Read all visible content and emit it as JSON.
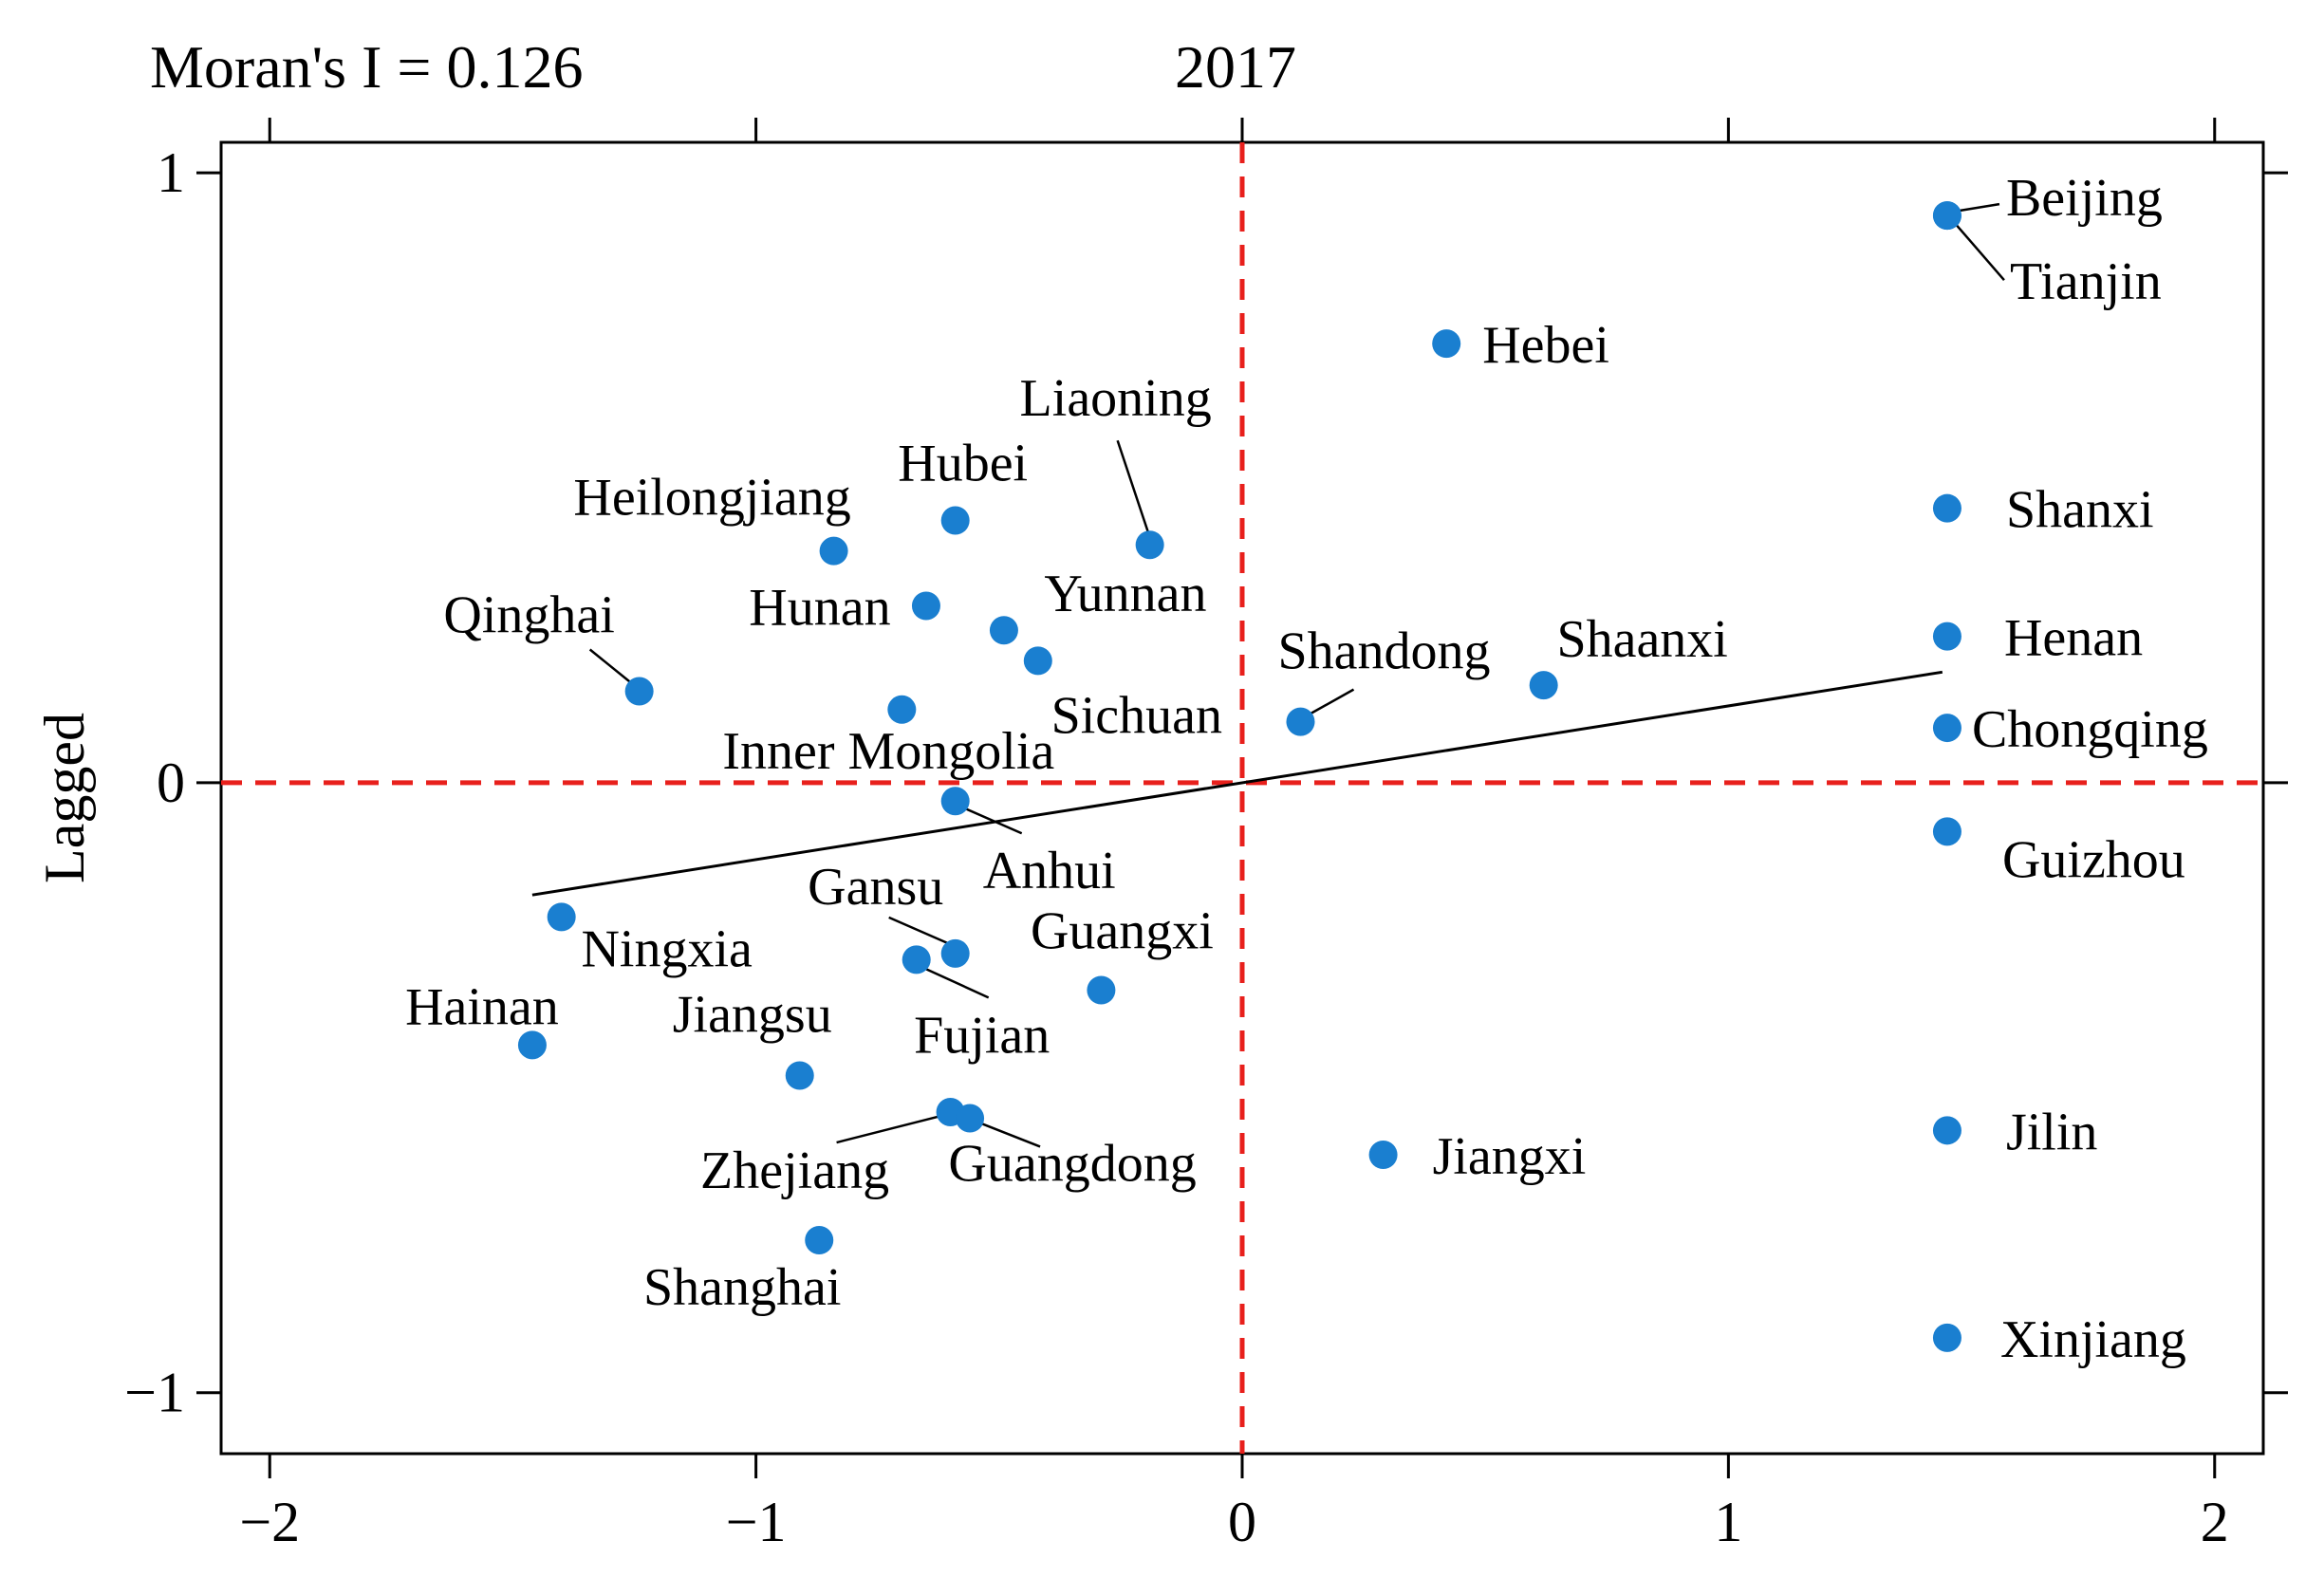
{
  "chart_data": {
    "type": "scatter",
    "title": "2017",
    "subtitle": "Moran's I = 0.126",
    "xlabel": "",
    "ylabel": "Lagged",
    "xlim": [
      -2.1,
      2.1
    ],
    "ylim": [
      -1.1,
      1.05
    ],
    "xticks": [
      -2,
      -1,
      0,
      1,
      2
    ],
    "xtick_labels": [
      "−2",
      "−1",
      "0",
      "1",
      "2"
    ],
    "yticks": [
      -1,
      0,
      1
    ],
    "ytick_labels": [
      "−1",
      "0",
      "1"
    ],
    "reference_lines": {
      "x": 0,
      "y": 0,
      "style": "dashed",
      "color": "#e8201c"
    },
    "fit_line": {
      "slope": 0.126,
      "intercept": 0,
      "x_from": -1.46,
      "x_to": 1.44
    },
    "point_color": "#1a7fd0",
    "points": [
      {
        "name": "Beijing",
        "x": 1.45,
        "y": 0.93
      },
      {
        "name": "Tianjin",
        "x": 1.45,
        "y": 0.93
      },
      {
        "name": "Hebei",
        "x": 0.42,
        "y": 0.72
      },
      {
        "name": "Shanxi",
        "x": 1.45,
        "y": 0.45
      },
      {
        "name": "Henan",
        "x": 1.45,
        "y": 0.24
      },
      {
        "name": "Chongqing",
        "x": 1.45,
        "y": 0.09
      },
      {
        "name": "Guizhou",
        "x": 1.45,
        "y": -0.08
      },
      {
        "name": "Jilin",
        "x": 1.45,
        "y": -0.57
      },
      {
        "name": "Xinjiang",
        "x": 1.45,
        "y": -0.91
      },
      {
        "name": "Jiangxi",
        "x": 0.29,
        "y": -0.61
      },
      {
        "name": "Shaanxi",
        "x": 0.62,
        "y": 0.16
      },
      {
        "name": "Shandong",
        "x": 0.12,
        "y": 0.1
      },
      {
        "name": "Liaoning",
        "x": -0.19,
        "y": 0.39
      },
      {
        "name": "Hubei",
        "x": -0.59,
        "y": 0.43
      },
      {
        "name": "Heilongjiang",
        "x": -0.84,
        "y": 0.38
      },
      {
        "name": "Hunan",
        "x": -0.65,
        "y": 0.29
      },
      {
        "name": "Yunnan",
        "x": -0.49,
        "y": 0.25
      },
      {
        "name": "Sichuan",
        "x": -0.42,
        "y": 0.2
      },
      {
        "name": "Qinghai",
        "x": -1.24,
        "y": 0.15
      },
      {
        "name": "Inner Mongolia",
        "x": -0.7,
        "y": 0.12
      },
      {
        "name": "Anhui",
        "x": -0.59,
        "y": -0.03
      },
      {
        "name": "Ningxia",
        "x": -1.4,
        "y": -0.22
      },
      {
        "name": "Gansu",
        "x": -0.59,
        "y": -0.28
      },
      {
        "name": "Fujian",
        "x": -0.67,
        "y": -0.29
      },
      {
        "name": "Guangxi",
        "x": -0.29,
        "y": -0.34
      },
      {
        "name": "Hainan",
        "x": -1.46,
        "y": -0.43
      },
      {
        "name": "Jiangsu",
        "x": -0.91,
        "y": -0.48
      },
      {
        "name": "Zhejiang",
        "x": -0.6,
        "y": -0.54
      },
      {
        "name": "Guangdong",
        "x": -0.56,
        "y": -0.55
      },
      {
        "name": "Shanghai",
        "x": -0.87,
        "y": -0.75
      }
    ]
  }
}
